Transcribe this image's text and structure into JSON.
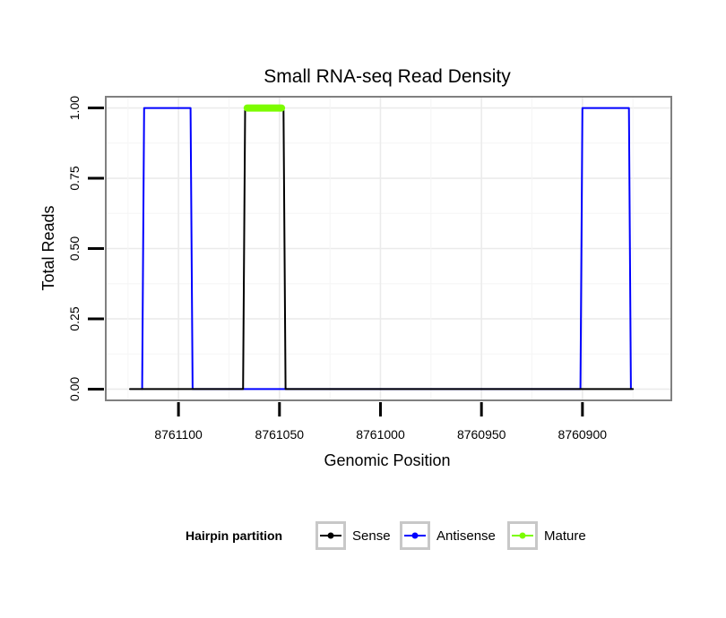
{
  "chart_data": {
    "type": "line",
    "title": "Small RNA-seq Read Density",
    "xlabel": "Genomic Position",
    "ylabel": "Total Reads",
    "x_reversed": true,
    "xlim": [
      8761136,
      8760856
    ],
    "ylim": [
      -0.04,
      1.04
    ],
    "x_ticks": [
      8761100,
      8761050,
      8761000,
      8760950,
      8760900
    ],
    "x_tick_labels": [
      "8761100",
      "8761050",
      "8761000",
      "8760950",
      "8760900"
    ],
    "y_ticks": [
      0,
      0.25,
      0.5,
      0.75,
      1
    ],
    "y_tick_labels": [
      "0.00",
      "0.25",
      "0.50",
      "0.75",
      "1.00"
    ],
    "grid": true,
    "series": [
      {
        "name": "Sense",
        "color": "#000000",
        "x": [
          8761124,
          8761068,
          8761067,
          8761048,
          8761047,
          8760875
        ],
        "y": [
          0,
          0,
          1,
          1,
          0,
          0
        ]
      },
      {
        "name": "Antisense",
        "color": "#0000ff",
        "x": [
          8761118,
          8761117,
          8761094,
          8761093,
          8761068,
          8761047,
          8760901,
          8760900,
          8760877,
          8760876
        ],
        "y": [
          0,
          1,
          1,
          0,
          0,
          0,
          0,
          1,
          1,
          0
        ]
      },
      {
        "name": "Mature",
        "color": "#7cfc00",
        "x": [
          8761066,
          8761049
        ],
        "y": [
          1,
          1
        ]
      }
    ],
    "legend": {
      "title": "Hairpin partition",
      "placement": "bottom",
      "entries": [
        {
          "label": "Sense",
          "color": "#000000"
        },
        {
          "label": "Antisense",
          "color": "#0000ff"
        },
        {
          "label": "Mature",
          "color": "#7cfc00"
        }
      ]
    }
  }
}
